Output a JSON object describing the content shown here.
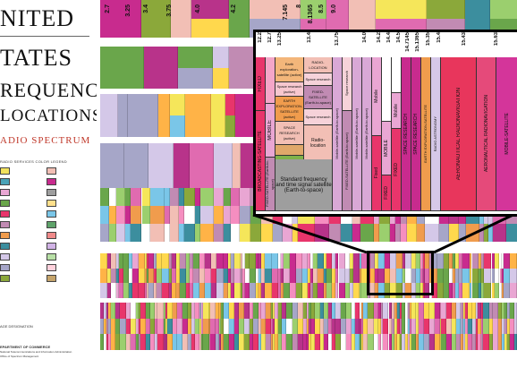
{
  "poster": {
    "title_lines": [
      "NITED",
      "TATES",
      "REQUENCY",
      "LOCATIONS"
    ],
    "subtitle": "ADIO SPECTRUM",
    "legend_title": "RADIO SERVICES COLOR LEGEND",
    "footer_lines": [
      "AGE DESIGNATION",
      "EPARTMENT OF COMMERCE",
      "National Telecommunications and Information Administration",
      "Office of Spectrum Management"
    ]
  },
  "colors": {
    "fixed": "#e8356b",
    "mobile": "#e9a6d3",
    "space_research": "#c82b8e",
    "fixed_satellite": "#c18bb3",
    "radio_astronomy": "#a6a6c8",
    "aeronautical_radionav": "#e8365c",
    "broadcasting_satellite": "#8ba83a",
    "standard_frequency": "#9e9e9e",
    "amateur": "#f5e65a",
    "radionavigation": "#6aa64b",
    "earth_exploration": "#f09c4d",
    "radiolocation": "#f2bfb5",
    "maritime": "#3c8e9e",
    "land_mobile": "#d4c8e8"
  },
  "top_freqs": [
    "2.7",
    "3.25",
    "3.4",
    "3.75",
    "4.0",
    "4.2"
  ],
  "top_right_freqs": [
    "7.145",
    "8",
    "8.1365",
    "8.5",
    "9.0"
  ],
  "zoom": {
    "freq_labels": [
      "12.2",
      "12.7",
      "13.25",
      "13.4",
      "13.75",
      "14.0",
      "14.2",
      "14.4",
      "14.5",
      "14.7145",
      "15.1365",
      "15.35",
      "15.4",
      "15.43",
      "15.63"
    ],
    "cells": {
      "earth_explor_active": "Earth exploration-satellite (active)",
      "space_research_active": "Space research (active)",
      "earth_explor_active_caps": "EARTH EXPLORATION-SATELLITE (active)",
      "space_research_active_caps": "SPACE RESEARCH (active)",
      "radiolocation_caps": "RADIO-LOCATION",
      "space_research": "Space research",
      "fixed_sat_earth_space": "FIXED-SATELLITE (Earth-to-space)",
      "space_research_2": "Space research",
      "radio_location": "Radio-location",
      "standard_frequency": "Standard frequency and time signal satellite (Earth-to-space)",
      "fixed": "FIXED",
      "mobile": "MOBILE",
      "broadcasting_satellite": "BROADCASTING-SATELLITE",
      "fixed_satellite_vertical": "FIXED-SATELLITE (Earth-to-space)",
      "aeronautical_radionav": "Aeronautical radionavigation",
      "mobile_sat": "Mobile-satellite (Earth-to-space)",
      "space_research_small": "Space research",
      "fixed_sat_earth_space_2": "FIXED-SATELLITE (Earth-to-space)",
      "mobile_satellite": "Mobile-satellite (Earth-to-space)",
      "mobile_small": "Mobile",
      "fixed_small": "Fixed",
      "mobile_caps": "MOBILE",
      "space_research_caps": "SPACE RESEARCH",
      "fixed_caps": "FIXED",
      "space_research_caps2": "SPACE RESEARCH",
      "earth_explor": "EARTH EXPLORATION-SATELLITE",
      "radio_astronomy": "RADIO ASTRONOMY",
      "aero_radionav": "AERONAUTICAL RADIONAVIGATION",
      "aero_radionav2": "AERONAUTICAL RADIONAVIGATION",
      "mobile_satellite_2": "MOBILE-SATELLITE"
    }
  }
}
